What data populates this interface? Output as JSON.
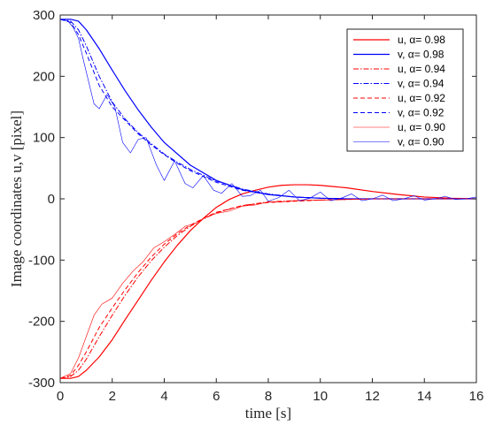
{
  "chart_data": {
    "type": "line",
    "title": "",
    "xlabel": "time [s]",
    "ylabel": "Image coordinates u,v [pixel]",
    "xlim": [
      0,
      16
    ],
    "ylim": [
      -300,
      300
    ],
    "xticks": [
      0,
      2,
      4,
      6,
      8,
      10,
      12,
      14,
      16
    ],
    "yticks": [
      -300,
      -200,
      -100,
      0,
      100,
      200,
      300
    ],
    "grid": false,
    "legend_position": "top-right",
    "colors": {
      "u": "#ff0000",
      "v": "#0000ff",
      "axis": "#262626"
    },
    "series": [
      {
        "name": "u, α= 0.98",
        "color": "#ff0000",
        "dash": "solid",
        "width": 1.2,
        "x": [
          0,
          0.4,
          0.7,
          1,
          1.5,
          2,
          2.5,
          3,
          3.5,
          4,
          4.5,
          5,
          5.5,
          6,
          6.5,
          7,
          7.5,
          8,
          8.5,
          9,
          9.5,
          10,
          11,
          12,
          13,
          14,
          15,
          16
        ],
        "y": [
          -293,
          -293,
          -290,
          -280,
          -258,
          -230,
          -197,
          -165,
          -133,
          -103,
          -76,
          -52,
          -32,
          -14,
          -1,
          8,
          14,
          19,
          22,
          23,
          23,
          22,
          18,
          12,
          7,
          3,
          1,
          0
        ]
      },
      {
        "name": "v, α= 0.98",
        "color": "#0000ff",
        "dash": "solid",
        "width": 1.2,
        "x": [
          0,
          0.4,
          0.7,
          1,
          1.5,
          2,
          2.5,
          3,
          3.5,
          4,
          5,
          6,
          7,
          8,
          9,
          10,
          11,
          12,
          13,
          14,
          15,
          16
        ],
        "y": [
          293,
          293,
          290,
          276,
          245,
          210,
          176,
          145,
          117,
          92,
          55,
          30,
          15,
          7,
          3,
          1,
          0,
          0,
          0,
          0,
          0,
          0
        ]
      },
      {
        "name": "u, α= 0.94",
        "color": "#ff0000",
        "dash": "dashdot",
        "width": 1,
        "x": [
          0,
          0.4,
          0.7,
          1,
          1.5,
          2,
          2.5,
          3,
          3.5,
          4,
          4.5,
          5,
          5.5,
          6,
          7,
          8,
          9,
          10,
          11,
          12,
          13,
          14,
          15,
          16
        ],
        "y": [
          -293,
          -290,
          -280,
          -262,
          -225,
          -190,
          -157,
          -127,
          -101,
          -79,
          -60,
          -45,
          -33,
          -23,
          -11,
          -5,
          -3,
          -2,
          -1,
          0,
          0,
          0,
          0,
          0
        ]
      },
      {
        "name": "v, α= 0.94",
        "color": "#0000ff",
        "dash": "dashdot",
        "width": 1,
        "x": [
          0,
          0.4,
          0.7,
          1,
          1.5,
          2,
          2.5,
          3,
          3.5,
          4,
          4.5,
          5,
          6,
          7,
          8,
          9,
          10,
          11,
          12,
          13,
          14,
          15,
          16
        ],
        "y": [
          293,
          290,
          276,
          250,
          200,
          158,
          130,
          108,
          90,
          73,
          60,
          48,
          29,
          16,
          8,
          3,
          1,
          0,
          0,
          0,
          0,
          0,
          0
        ]
      },
      {
        "name": "u, α= 0.92",
        "color": "#ff0000",
        "dash": "dashed",
        "width": 1,
        "x": [
          0,
          0.4,
          0.7,
          1,
          1.5,
          2,
          2.5,
          3,
          3.5,
          4,
          4.5,
          5,
          5.5,
          6,
          7,
          8,
          9,
          10,
          11,
          12,
          13,
          14,
          15,
          16
        ],
        "y": [
          -293,
          -288,
          -272,
          -250,
          -210,
          -178,
          -148,
          -120,
          -95,
          -74,
          -57,
          -43,
          -32,
          -22,
          -11,
          -6,
          -4,
          -2,
          -1,
          0,
          0,
          0,
          0,
          0
        ]
      },
      {
        "name": "v, α= 0.92",
        "color": "#0000ff",
        "dash": "dashed",
        "width": 1,
        "x": [
          0,
          0.4,
          0.7,
          1,
          1.5,
          2,
          2.5,
          3,
          3.5,
          4,
          4.5,
          5,
          6,
          7,
          8,
          9,
          10,
          11,
          12,
          13,
          14,
          15,
          16
        ],
        "y": [
          293,
          288,
          268,
          238,
          185,
          150,
          128,
          106,
          88,
          72,
          58,
          46,
          27,
          14,
          7,
          3,
          1,
          0,
          0,
          0,
          0,
          0,
          0
        ]
      },
      {
        "name": "u, α= 0.90",
        "color": "#ff0000",
        "dash": "solid",
        "width": 0.6,
        "x": [
          0,
          0.4,
          0.7,
          1,
          1.3,
          1.6,
          2,
          2.4,
          2.8,
          3.2,
          3.6,
          4,
          4.4,
          4.8,
          5.2,
          5.6,
          6,
          6.5,
          7,
          7.5,
          8,
          8.5,
          9,
          10,
          11,
          12,
          13,
          14,
          15,
          16
        ],
        "y": [
          -293,
          -285,
          -260,
          -225,
          -190,
          -172,
          -162,
          -138,
          -118,
          -102,
          -80,
          -70,
          -58,
          -45,
          -40,
          -30,
          -24,
          -20,
          -12,
          -10,
          -5,
          -5,
          -3,
          -2,
          -1,
          0,
          0,
          0,
          0,
          0
        ]
      },
      {
        "name": "v, α= 0.90",
        "color": "#0000ff",
        "dash": "solid",
        "width": 0.6,
        "x": [
          0,
          0.3,
          0.5,
          0.7,
          0.9,
          1.1,
          1.3,
          1.5,
          1.8,
          2.1,
          2.4,
          2.7,
          3.0,
          3.3,
          3.7,
          4.0,
          4.4,
          4.8,
          5.1,
          5.5,
          5.9,
          6.2,
          6.6,
          7.0,
          7.3,
          7.7,
          8.0,
          8.4,
          8.8,
          9.2,
          9.6,
          10.0,
          10.4,
          10.8,
          11.2,
          11.6,
          12.0,
          12.4,
          12.8,
          13.2,
          13.6,
          14.0,
          14.4,
          14.8,
          15.2,
          15.6,
          16.0
        ],
        "y": [
          293,
          290,
          280,
          262,
          225,
          190,
          155,
          147,
          170,
          150,
          92,
          75,
          97,
          100,
          55,
          30,
          62,
          25,
          18,
          38,
          14,
          9,
          25,
          4,
          5,
          14,
          -4,
          2,
          14,
          -3,
          1,
          11,
          -3,
          1,
          8,
          -3,
          0,
          6,
          -3,
          0,
          5,
          -2,
          0,
          4,
          -1,
          0,
          3
        ]
      }
    ]
  }
}
